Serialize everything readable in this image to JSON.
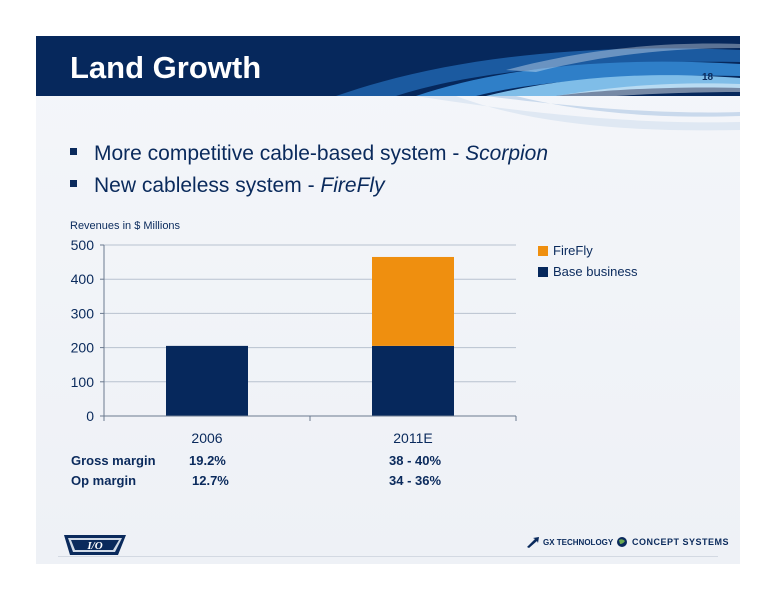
{
  "header": {
    "title": "Land Growth",
    "page_number": "18"
  },
  "bullets": [
    {
      "text": "More competitive cable-based system - ",
      "italic": "Scorpion"
    },
    {
      "text": "New cableless system - ",
      "italic": "FireFly"
    }
  ],
  "chart_data": {
    "type": "bar",
    "stacked": true,
    "caption": "Revenues in $ Millions",
    "categories": [
      "2006",
      "2011E"
    ],
    "series": [
      {
        "name": "Base business",
        "values": [
          205,
          205
        ],
        "color": "#06285c"
      },
      {
        "name": "FireFly",
        "values": [
          0,
          260
        ],
        "color": "#ef8f0f"
      }
    ],
    "ylim": [
      0,
      500
    ],
    "yticks": [
      "0",
      "100",
      "200",
      "300",
      "400",
      "500"
    ],
    "grid": true,
    "legend_position": "right"
  },
  "legend": [
    {
      "label": "FireFly",
      "color": "#ef8f0f"
    },
    {
      "label": "Base business",
      "color": "#06285c"
    }
  ],
  "margins": {
    "rows": [
      {
        "label": "Gross margin",
        "val_2006": "19.2%",
        "val_2011": "38 -  40%"
      },
      {
        "label": "Op margin",
        "val_2006": "12.7%",
        "val_2011": "34 -  36%"
      }
    ]
  },
  "footer": {
    "io_logo_text": "I/O",
    "gx_logo_text": "GX TECHNOLOGY",
    "cs_logo_text": "CONCEPT SYSTEMS",
    "gx_icon": "arrow-icon",
    "cs_icon": "globe-icon"
  }
}
